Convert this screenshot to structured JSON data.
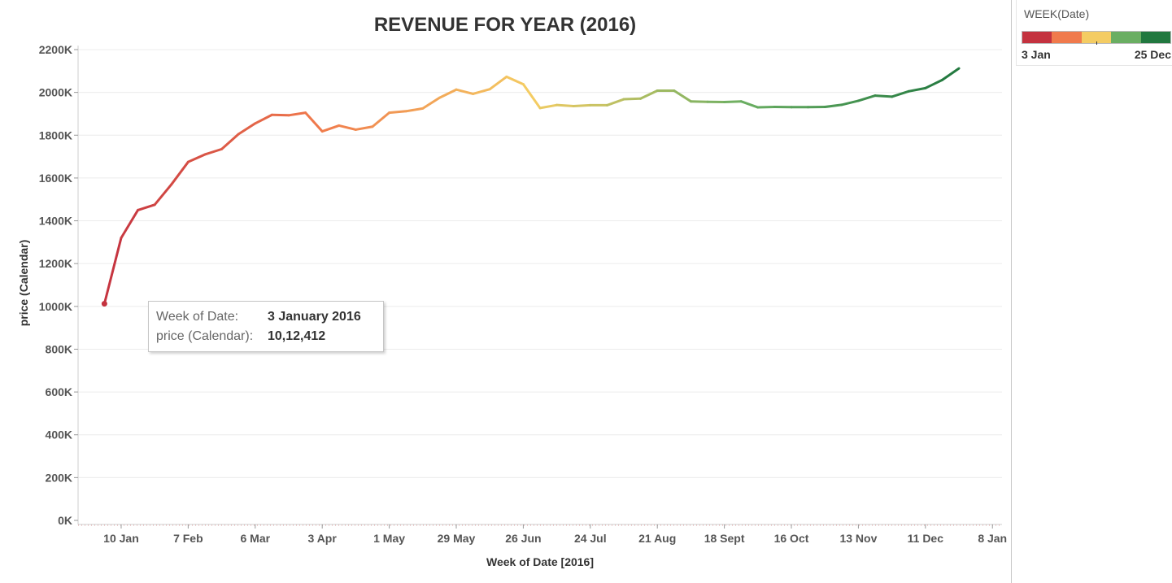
{
  "colors": {
    "ramp": [
      "#c4323f",
      "#f07a4c",
      "#f4cc63",
      "#6aae62",
      "#21783f"
    ]
  },
  "legend": {
    "title": "WEEK(Date)",
    "start_label": "3 Jan",
    "end_label": "25 Dec"
  },
  "tooltip": {
    "row1_label": "Week of Date:",
    "row1_value": "3 January 2016",
    "row2_label": "price (Calendar):",
    "row2_value": "10,12,412"
  },
  "chart_data": {
    "type": "line",
    "title": "REVENUE FOR YEAR (2016)",
    "xlabel": "Week of Date [2016]",
    "ylabel": "price (Calendar)",
    "ylim": [
      0,
      2200000
    ],
    "yticks": [
      0,
      200000,
      400000,
      600000,
      800000,
      1000000,
      1200000,
      1400000,
      1600000,
      1800000,
      2000000,
      2200000
    ],
    "ytick_labels": [
      "0K",
      "200K",
      "400K",
      "600K",
      "800K",
      "1000K",
      "1200K",
      "1400K",
      "1600K",
      "1800K",
      "2000K",
      "2200K"
    ],
    "xlim": [
      "2015-12-23",
      "2017-01-12"
    ],
    "xticks": [
      "2016-01-10",
      "2016-02-07",
      "2016-03-06",
      "2016-04-03",
      "2016-05-01",
      "2016-05-29",
      "2016-06-26",
      "2016-07-24",
      "2016-08-21",
      "2016-09-18",
      "2016-10-16",
      "2016-11-13",
      "2016-12-11",
      "2017-01-08"
    ],
    "xtick_labels": [
      "10 Jan",
      "7 Feb",
      "6 Mar",
      "3 Apr",
      "1 May",
      "29 May",
      "26 Jun",
      "24 Jul",
      "21 Aug",
      "18 Sept",
      "16 Oct",
      "13 Nov",
      "11 Dec",
      "8 Jan"
    ],
    "grid": true,
    "legend_position": "top-right",
    "highlighted_point": {
      "x": "2016-01-03",
      "y": 1012412
    },
    "series": [
      {
        "x": [
          "2016-01-03",
          "2016-01-10",
          "2016-01-17",
          "2016-01-24",
          "2016-01-31",
          "2016-02-07",
          "2016-02-14",
          "2016-02-21",
          "2016-02-28",
          "2016-03-06",
          "2016-03-13",
          "2016-03-20",
          "2016-03-27",
          "2016-04-03",
          "2016-04-10",
          "2016-04-17",
          "2016-04-24",
          "2016-05-01",
          "2016-05-08",
          "2016-05-15",
          "2016-05-22",
          "2016-05-29",
          "2016-06-05",
          "2016-06-12",
          "2016-06-19",
          "2016-06-26",
          "2016-07-03",
          "2016-07-10",
          "2016-07-17",
          "2016-07-24",
          "2016-07-31",
          "2016-08-07",
          "2016-08-14",
          "2016-08-21",
          "2016-08-28",
          "2016-09-04",
          "2016-09-11",
          "2016-09-18",
          "2016-09-25",
          "2016-10-02",
          "2016-10-09",
          "2016-10-16",
          "2016-10-23",
          "2016-10-30",
          "2016-11-06",
          "2016-11-13",
          "2016-11-20",
          "2016-11-27",
          "2016-12-04",
          "2016-12-11",
          "2016-12-18",
          "2016-12-25"
        ],
        "values": [
          1012412,
          1320000,
          1450000,
          1475000,
          1570000,
          1675000,
          1710000,
          1735000,
          1805000,
          1855000,
          1895000,
          1893000,
          1905000,
          1818000,
          1845000,
          1826000,
          1840000,
          1905000,
          1912000,
          1925000,
          1975000,
          2013000,
          1993000,
          2015000,
          2073000,
          2038000,
          1927000,
          1941000,
          1936000,
          1940000,
          1940000,
          1968000,
          1971000,
          2008000,
          2008000,
          1958000,
          1956000,
          1955000,
          1958000,
          1930000,
          1932000,
          1931000,
          1931000,
          1932000,
          1942000,
          1961000,
          1985000,
          1980000,
          2005000,
          2020000,
          2058000,
          2112000
        ]
      }
    ]
  }
}
